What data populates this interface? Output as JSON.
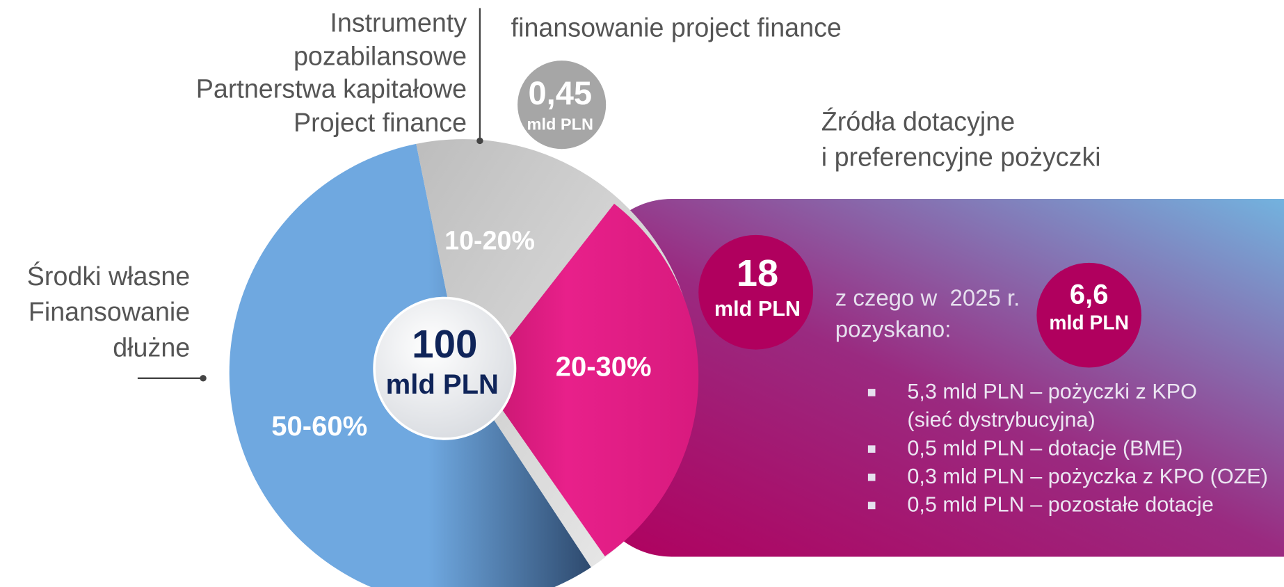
{
  "center": {
    "value": "100",
    "unit": "mld PLN"
  },
  "segments": [
    {
      "label": "50-60%",
      "description": [
        "Środki własne",
        "Finansowanie",
        "dłużne"
      ]
    },
    {
      "label": "10-20%",
      "description": [
        "Instrumenty",
        "pozabilansowe",
        "Partnerstwa kapitałowe",
        "Project finance"
      ]
    },
    {
      "label": "20-30%"
    }
  ],
  "offbalance": {
    "title": "finansowanie project finance",
    "value": "0,45",
    "unit": "mld PLN"
  },
  "grants": {
    "title": [
      "Źródła dotacyjne",
      "i preferencyjne pożyczki"
    ],
    "total": {
      "value": "18",
      "unit": "mld PLN"
    },
    "note": [
      "z czego w  2025 r.",
      "pozyskano:"
    ],
    "obtained": {
      "value": "6,6",
      "unit": "mld PLN"
    },
    "items": [
      [
        "5,3 mld PLN – pożyczki z KPO",
        "(sieć dystrybucyjna)"
      ],
      [
        "0,5 mld PLN – dotacje (BME)"
      ],
      [
        "0,3 mld PLN – pożyczka z KPO (OZE)"
      ],
      [
        "0,5 mld PLN – pozostałe dotacje"
      ]
    ]
  }
}
